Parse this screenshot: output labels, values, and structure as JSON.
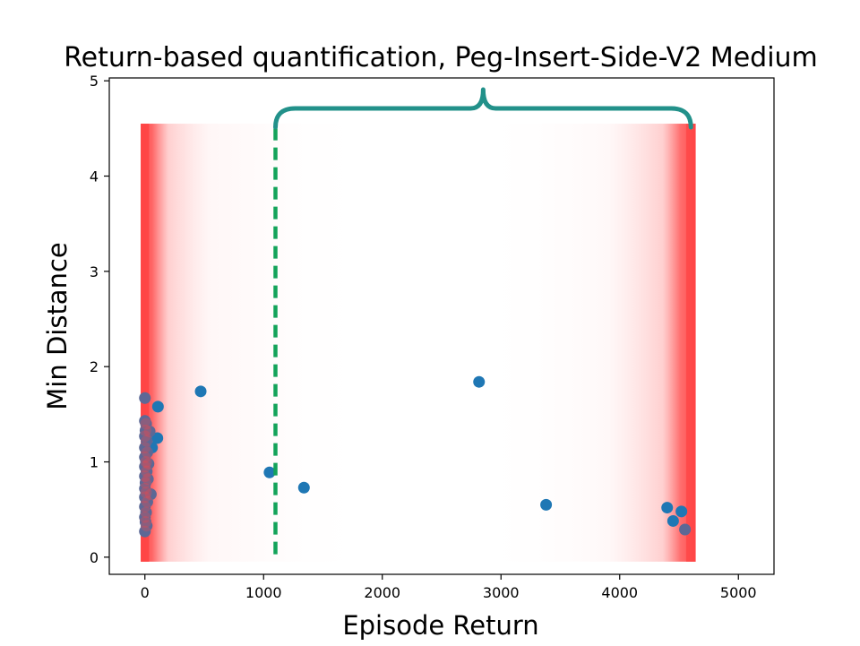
{
  "chart_data": {
    "type": "scatter",
    "title": "Return-based quantification, Peg-Insert-Side-V2 Medium",
    "xlabel": "Episode Return",
    "ylabel": "Min Distance",
    "xlim": [
      -300,
      5300
    ],
    "ylim": [
      -0.18,
      5.03
    ],
    "xticks": [
      0,
      1000,
      2000,
      3000,
      4000,
      5000
    ],
    "yticks": [
      0,
      1,
      2,
      3,
      4,
      5
    ],
    "grid": false,
    "colors": {
      "points": "#1f77b4",
      "red_band": "#ff4444",
      "threshold_line": "#13a35a",
      "brace": "#22918a"
    },
    "threshold_x": 1100,
    "brace_range": [
      1100,
      4600
    ],
    "red_bands": [
      {
        "center": 0,
        "width": 70,
        "y_top": 4.55
      },
      {
        "center": 4600,
        "width": 80,
        "y_top": 4.55
      }
    ],
    "points": [
      {
        "x": 0,
        "y": 1.67
      },
      {
        "x": 0,
        "y": 1.43
      },
      {
        "x": 10,
        "y": 1.4
      },
      {
        "x": 5,
        "y": 1.33
      },
      {
        "x": 0,
        "y": 1.27
      },
      {
        "x": 15,
        "y": 1.22
      },
      {
        "x": 0,
        "y": 1.15
      },
      {
        "x": 20,
        "y": 1.1
      },
      {
        "x": 0,
        "y": 1.05
      },
      {
        "x": 10,
        "y": 1.0
      },
      {
        "x": 30,
        "y": 0.98
      },
      {
        "x": 0,
        "y": 0.95
      },
      {
        "x": 15,
        "y": 0.9
      },
      {
        "x": 0,
        "y": 0.85
      },
      {
        "x": 25,
        "y": 0.82
      },
      {
        "x": 5,
        "y": 0.78
      },
      {
        "x": 0,
        "y": 0.72
      },
      {
        "x": 10,
        "y": 0.68
      },
      {
        "x": 0,
        "y": 0.63
      },
      {
        "x": 20,
        "y": 0.58
      },
      {
        "x": 0,
        "y": 0.53
      },
      {
        "x": 10,
        "y": 0.47
      },
      {
        "x": 0,
        "y": 0.42
      },
      {
        "x": 5,
        "y": 0.37
      },
      {
        "x": 15,
        "y": 0.33
      },
      {
        "x": 0,
        "y": 0.27
      },
      {
        "x": 40,
        "y": 1.32
      },
      {
        "x": 60,
        "y": 1.15
      },
      {
        "x": 50,
        "y": 0.66
      },
      {
        "x": 110,
        "y": 1.58
      },
      {
        "x": 105,
        "y": 1.25
      },
      {
        "x": 470,
        "y": 1.74
      },
      {
        "x": 1050,
        "y": 0.89
      },
      {
        "x": 1340,
        "y": 0.73
      },
      {
        "x": 2815,
        "y": 1.84
      },
      {
        "x": 3380,
        "y": 0.55
      },
      {
        "x": 4400,
        "y": 0.52
      },
      {
        "x": 4520,
        "y": 0.48
      },
      {
        "x": 4450,
        "y": 0.38
      },
      {
        "x": 4550,
        "y": 0.29
      }
    ]
  }
}
